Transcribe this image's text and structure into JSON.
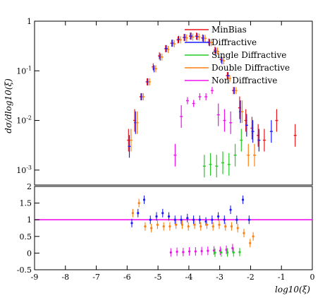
{
  "chart_data": [
    {
      "panel": "main",
      "type": "scatter",
      "ylabel": "dσ/dlog10(ξ)",
      "xlabel": "log10(ξ)",
      "xlim": [
        -9,
        0
      ],
      "ylim": [
        0.0005,
        1
      ],
      "yscale": "log",
      "y_tick_labels": [
        "1",
        "10^-1",
        "10^-2",
        "10^-3"
      ],
      "legend_position": "top-right",
      "series": [
        {
          "name": "MinBias",
          "color": "#e8141c",
          "x": [
            -5.9,
            -5.7,
            -5.5,
            -5.3,
            -5.1,
            -4.9,
            -4.7,
            -4.5,
            -4.3,
            -4.1,
            -3.9,
            -3.7,
            -3.5,
            -3.3,
            -3.1,
            -2.9,
            -2.7,
            -2.5,
            -2.3,
            -2.1,
            -1.9,
            -1.7,
            -1.5,
            -1.1,
            -0.5
          ],
          "y": [
            0.004,
            0.01,
            0.03,
            0.06,
            0.12,
            0.2,
            0.28,
            0.36,
            0.42,
            0.47,
            0.5,
            0.5,
            0.46,
            0.38,
            0.26,
            0.17,
            0.08,
            0.04,
            0.018,
            0.01,
            0.007,
            0.005,
            0.004,
            0.01,
            0.005
          ]
        },
        {
          "name": "Diffractive",
          "color": "#1a1aff",
          "x": [
            -5.9,
            -5.7,
            -5.5,
            -5.3,
            -5.1,
            -4.9,
            -4.7,
            -4.5,
            -4.3,
            -4.1,
            -3.9,
            -3.7,
            -3.5,
            -3.3,
            -3.1,
            -2.9,
            -2.7,
            -2.5,
            -2.3,
            -2.1,
            -1.9,
            -1.7,
            -1.3
          ],
          "y": [
            0.003,
            0.009,
            0.03,
            0.06,
            0.11,
            0.19,
            0.28,
            0.36,
            0.43,
            0.47,
            0.5,
            0.49,
            0.45,
            0.37,
            0.25,
            0.16,
            0.08,
            0.04,
            0.015,
            0.008,
            0.006,
            0.004,
            0.006
          ]
        },
        {
          "name": "Single Diffractive",
          "color": "#22cc22",
          "x": [
            -3.5,
            -3.3,
            -3.1,
            -2.9,
            -2.7,
            -2.5,
            -2.3
          ],
          "y": [
            0.0012,
            0.0013,
            0.0012,
            0.0014,
            0.0013,
            0.002,
            0.004
          ]
        },
        {
          "name": "Double Diffractive",
          "color": "#ff7f0e",
          "x": [
            -5.9,
            -5.7,
            -5.5,
            -5.3,
            -5.1,
            -4.9,
            -4.7,
            -4.5,
            -4.3,
            -4.1,
            -3.9,
            -3.7,
            -3.5,
            -3.3,
            -3.1,
            -2.9,
            -2.7,
            -2.5,
            -2.3,
            -2.1,
            -1.9
          ],
          "y": [
            0.004,
            0.009,
            0.03,
            0.06,
            0.11,
            0.19,
            0.27,
            0.35,
            0.42,
            0.46,
            0.48,
            0.48,
            0.45,
            0.37,
            0.25,
            0.16,
            0.07,
            0.04,
            0.015,
            0.002,
            0.002
          ]
        },
        {
          "name": "Non Diffractive",
          "color": "#ee11ee",
          "x": [
            -4.5,
            -4.3,
            -4.1,
            -3.9,
            -3.7,
            -3.5,
            -3.3,
            -3.1,
            -2.9,
            -2.7
          ],
          "y": [
            0.002,
            0.012,
            0.025,
            0.022,
            0.03,
            0.03,
            0.04,
            0.013,
            0.01,
            0.009
          ]
        }
      ]
    },
    {
      "panel": "ratio",
      "type": "scatter",
      "xlim": [
        -9,
        0
      ],
      "ylim": [
        -0.5,
        2
      ],
      "x_tick_labels": [
        "-9",
        "-8",
        "-7",
        "-6",
        "-5",
        "-4",
        "-3",
        "-2",
        "-1",
        "0"
      ],
      "y_tick_labels": [
        "2",
        "1.5",
        "1",
        "0.5",
        "0",
        "-0.5"
      ],
      "series": [
        {
          "name": "Diffractive",
          "color": "#1a1aff",
          "x": [
            -5.8,
            -5.6,
            -5.4,
            -5.2,
            -5.0,
            -4.8,
            -4.6,
            -4.4,
            -4.2,
            -4.0,
            -3.8,
            -3.6,
            -3.4,
            -3.2,
            -3.0,
            -2.8,
            -2.6,
            -2.4,
            -2.2,
            -2.0
          ],
          "y": [
            0.9,
            1.2,
            1.6,
            1.0,
            1.1,
            1.2,
            1.1,
            1.0,
            1.0,
            1.05,
            1.0,
            1.0,
            0.95,
            1.0,
            1.1,
            1.0,
            1.3,
            1.0,
            1.6,
            1.0
          ]
        },
        {
          "name": "Double Diffractive",
          "color": "#ff7f0e",
          "x": [
            -5.8,
            -5.6,
            -5.4,
            -5.2,
            -5.0,
            -4.8,
            -4.6,
            -4.4,
            -4.2,
            -4.0,
            -3.8,
            -3.6,
            -3.4,
            -3.2,
            -3.0,
            -2.8,
            -2.6,
            -2.4,
            -2.2,
            -2.0,
            -1.9
          ],
          "y": [
            1.2,
            1.5,
            0.8,
            0.75,
            0.85,
            0.8,
            0.8,
            0.85,
            0.85,
            0.8,
            0.85,
            0.8,
            0.85,
            0.8,
            0.85,
            0.8,
            0.8,
            0.75,
            0.6,
            0.3,
            0.5
          ]
        },
        {
          "name": "Non Diffractive",
          "color": "#ee11ee",
          "x": [
            -4.6,
            -4.4,
            -4.2,
            -4.0,
            -3.8,
            -3.6,
            -3.4,
            -3.2,
            -3.0,
            -2.8,
            -2.6
          ],
          "y": [
            0.02,
            0.04,
            0.03,
            0.05,
            0.05,
            0.06,
            0.07,
            0.08,
            0.07,
            0.1,
            0.15
          ]
        },
        {
          "name": "Single Diffractive",
          "color": "#22cc22",
          "x": [
            -3.2,
            -3.0,
            -2.8,
            -2.6,
            -2.4
          ],
          "y": [
            0.01,
            0.02,
            0.02,
            0.02,
            0.03
          ]
        }
      ]
    }
  ]
}
